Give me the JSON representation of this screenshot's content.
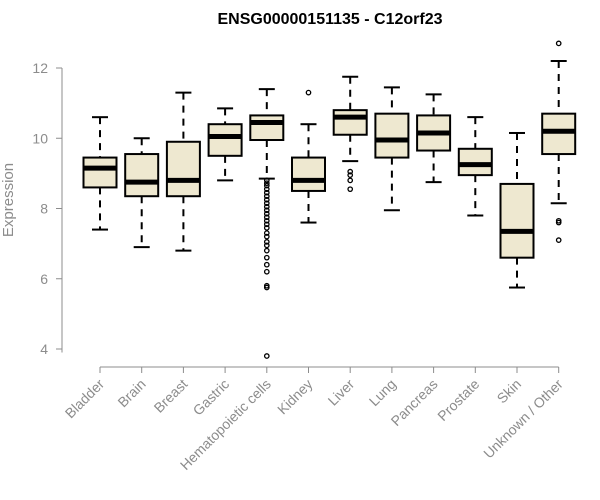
{
  "chart_data": {
    "type": "boxplot",
    "title": "ENSG00000151135 - C12orf23",
    "xlabel": "",
    "ylabel": "Expression",
    "ylim": [
      3.6,
      12.9
    ],
    "yticks": [
      "4",
      "6",
      "8",
      "10",
      "12"
    ],
    "box_fill": "#eee8d0",
    "categories": [
      "Bladder",
      "Brain",
      "Breast",
      "Gastric",
      "Hematopoietic cells",
      "Kidney",
      "Liver",
      "Lung",
      "Pancreas",
      "Prostate",
      "Skin",
      "Unknown / Other"
    ],
    "boxes": [
      {
        "name": "Bladder",
        "min": 7.4,
        "q1": 8.6,
        "median": 9.15,
        "q3": 9.45,
        "max": 10.6,
        "outliers": []
      },
      {
        "name": "Brain",
        "min": 6.9,
        "q1": 8.35,
        "median": 8.75,
        "q3": 9.55,
        "max": 10.0,
        "outliers": []
      },
      {
        "name": "Breast",
        "min": 6.8,
        "q1": 8.35,
        "median": 8.8,
        "q3": 9.9,
        "max": 11.3,
        "outliers": []
      },
      {
        "name": "Gastric",
        "min": 8.8,
        "q1": 9.5,
        "median": 10.05,
        "q3": 10.4,
        "max": 10.85,
        "outliers": []
      },
      {
        "name": "Hematopoietic cells",
        "min": 8.85,
        "q1": 9.95,
        "median": 10.45,
        "q3": 10.65,
        "max": 11.4,
        "outliers": [
          3.8,
          5.75,
          5.8,
          6.2,
          6.4,
          6.6,
          6.8,
          6.95,
          7.05,
          7.2,
          7.3,
          7.45,
          7.55,
          7.65,
          7.75,
          7.85,
          7.95,
          8.05,
          8.15,
          8.25,
          8.35,
          8.45,
          8.55,
          8.65,
          8.72,
          8.8
        ]
      },
      {
        "name": "Kidney",
        "min": 7.6,
        "q1": 8.5,
        "median": 8.8,
        "q3": 9.45,
        "max": 10.4,
        "outliers": [
          11.3
        ]
      },
      {
        "name": "Liver",
        "min": 9.35,
        "q1": 10.1,
        "median": 10.6,
        "q3": 10.8,
        "max": 11.75,
        "outliers": [
          8.55,
          8.8,
          8.95,
          9.05
        ]
      },
      {
        "name": "Lung",
        "min": 7.95,
        "q1": 9.45,
        "median": 9.95,
        "q3": 10.7,
        "max": 11.45,
        "outliers": []
      },
      {
        "name": "Pancreas",
        "min": 8.75,
        "q1": 9.65,
        "median": 10.15,
        "q3": 10.65,
        "max": 11.25,
        "outliers": []
      },
      {
        "name": "Prostate",
        "min": 7.8,
        "q1": 8.95,
        "median": 9.25,
        "q3": 9.7,
        "max": 10.6,
        "outliers": []
      },
      {
        "name": "Skin",
        "min": 5.75,
        "q1": 6.6,
        "median": 7.35,
        "q3": 8.7,
        "max": 10.15,
        "outliers": []
      },
      {
        "name": "Unknown / Other",
        "min": 8.15,
        "q1": 9.55,
        "median": 10.2,
        "q3": 10.7,
        "max": 12.2,
        "outliers": [
          12.7,
          7.6,
          7.65,
          7.1
        ]
      }
    ]
  }
}
